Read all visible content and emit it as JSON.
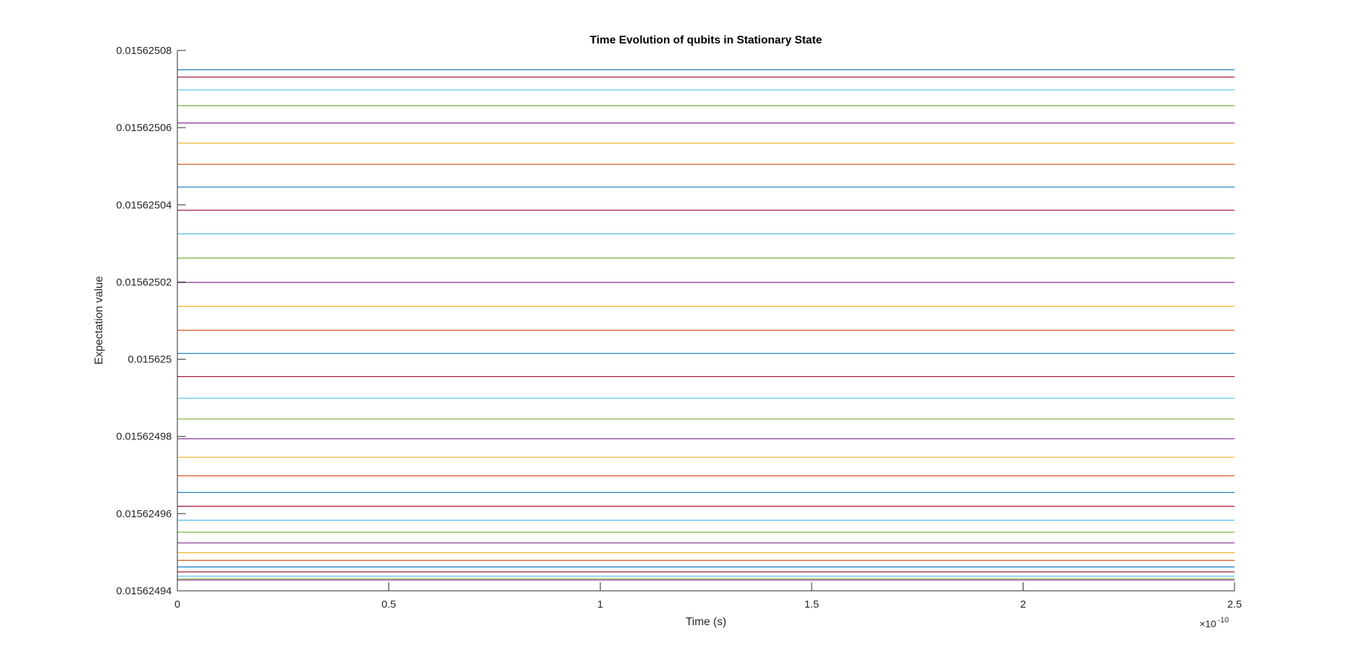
{
  "chart_data": {
    "type": "line",
    "title": "Time Evolution of qubits in Stationary State",
    "xlabel": "Time (s)",
    "ylabel": "Expectation value",
    "x_multiplier_label": "×10",
    "x_multiplier_exponent": "-10",
    "xlim": [
      0,
      2.5e-10
    ],
    "ylim": [
      0.01562494,
      0.01562508
    ],
    "x_ticks": [
      0,
      5e-11,
      1e-10,
      1.5e-10,
      2e-10,
      2.5e-10
    ],
    "x_tick_labels": [
      "0",
      "0.5",
      "1",
      "1.5",
      "2",
      "2.5"
    ],
    "y_ticks": [
      0.01562494,
      0.01562496,
      0.01562498,
      0.015625,
      0.01562502,
      0.01562504,
      0.01562506,
      0.01562508
    ],
    "y_tick_labels": [
      "0.01562494",
      "0.01562496",
      "0.01562498",
      "0.015625",
      "0.01562502",
      "0.01562504",
      "0.01562506",
      "0.01562508"
    ],
    "grid": false,
    "x": [
      0,
      2.5e-10
    ],
    "series": [
      {
        "color": "#0072BD",
        "values": [
          0.015625075,
          0.015625075
        ]
      },
      {
        "color": "#A2142F",
        "values": [
          0.0156250731,
          0.0156250731
        ]
      },
      {
        "color": "#4DBEEE",
        "values": [
          0.0156250698,
          0.0156250698
        ]
      },
      {
        "color": "#77AC30",
        "values": [
          0.0156250657,
          0.0156250657
        ]
      },
      {
        "color": "#7E2F8E",
        "values": [
          0.0156250612,
          0.0156250612
        ]
      },
      {
        "color": "#EDB120",
        "values": [
          0.015625056,
          0.015625056
        ]
      },
      {
        "color": "#D95319",
        "values": [
          0.0156250505,
          0.0156250505
        ]
      },
      {
        "color": "#0072BD",
        "values": [
          0.0156250446,
          0.0156250446
        ]
      },
      {
        "color": "#A2142F",
        "values": [
          0.0156250386,
          0.0156250386
        ]
      },
      {
        "color": "#4DBEEE",
        "values": [
          0.0156250325,
          0.0156250325
        ]
      },
      {
        "color": "#77AC30",
        "values": [
          0.0156250262,
          0.0156250262
        ]
      },
      {
        "color": "#7E2F8E",
        "values": [
          0.0156250199,
          0.0156250199
        ]
      },
      {
        "color": "#EDB120",
        "values": [
          0.0156250137,
          0.0156250137
        ]
      },
      {
        "color": "#D95319",
        "values": [
          0.0156250075,
          0.0156250075
        ]
      },
      {
        "color": "#0072BD",
        "values": [
          0.0156250015,
          0.0156250015
        ]
      },
      {
        "color": "#A2142F",
        "values": [
          0.0156249955,
          0.0156249955
        ]
      },
      {
        "color": "#4DBEEE",
        "values": [
          0.0156249899,
          0.0156249899
        ]
      },
      {
        "color": "#77AC30",
        "values": [
          0.0156249845,
          0.0156249845
        ]
      },
      {
        "color": "#7E2F8E",
        "values": [
          0.0156249794,
          0.0156249794
        ]
      },
      {
        "color": "#EDB120",
        "values": [
          0.0156249746,
          0.0156249746
        ]
      },
      {
        "color": "#D95319",
        "values": [
          0.0156249698,
          0.0156249698
        ]
      },
      {
        "color": "#0072BD",
        "values": [
          0.0156249655,
          0.0156249655
        ]
      },
      {
        "color": "#A2142F",
        "values": [
          0.0156249619,
          0.0156249619
        ]
      },
      {
        "color": "#4DBEEE",
        "values": [
          0.0156249583,
          0.0156249583
        ]
      },
      {
        "color": "#77AC30",
        "values": [
          0.0156249552,
          0.0156249552
        ]
      },
      {
        "color": "#7E2F8E",
        "values": [
          0.0156249524,
          0.0156249524
        ]
      },
      {
        "color": "#EDB120",
        "values": [
          0.0156249499,
          0.0156249499
        ]
      },
      {
        "color": "#D95319",
        "values": [
          0.0156249479,
          0.0156249479
        ]
      },
      {
        "color": "#0072BD",
        "values": [
          0.0156249462,
          0.0156249462
        ]
      },
      {
        "color": "#A2142F",
        "values": [
          0.0156249449,
          0.0156249449
        ]
      },
      {
        "color": "#4DBEEE",
        "values": [
          0.0156249438,
          0.0156249438
        ]
      },
      {
        "color": "#77AC30",
        "values": [
          0.0156249431,
          0.0156249431
        ]
      },
      {
        "color": "#7E2F8E",
        "values": [
          0.0156249428,
          0.0156249428
        ]
      }
    ]
  }
}
